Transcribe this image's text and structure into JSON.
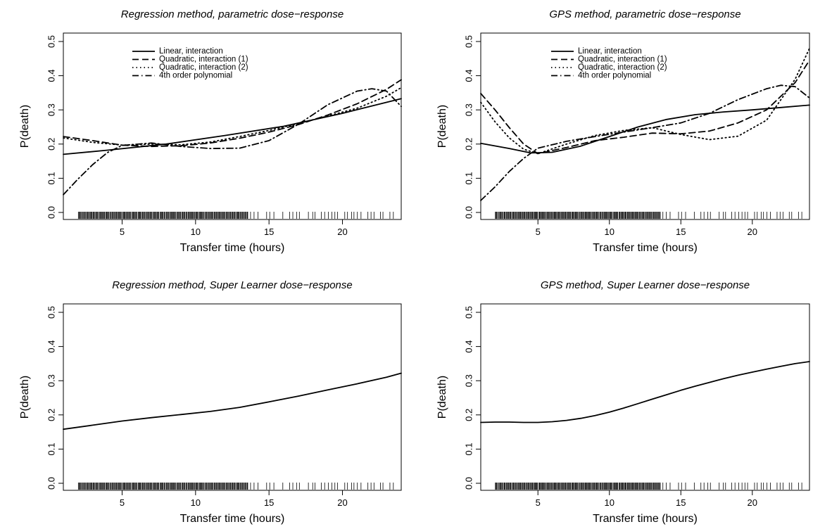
{
  "chart_data": [
    {
      "type": "line",
      "title": "Regression method, parametric dose−response",
      "xlabel": "Transfer time (hours)",
      "ylabel": "P(death)",
      "xlim": [
        1,
        24
      ],
      "ylim": [
        0.0,
        0.5
      ],
      "xticks": [
        "5",
        "10",
        "15",
        "20"
      ],
      "yticks": [
        "0.0",
        "0.1",
        "0.2",
        "0.3",
        "0.4",
        "0.5"
      ],
      "legend_position": "top-left",
      "series": [
        {
          "name": "Linear, interaction",
          "style": "solid",
          "x": [
            1,
            4,
            8,
            12,
            16,
            20,
            24
          ],
          "y": [
            0.17,
            0.182,
            0.2,
            0.225,
            0.252,
            0.29,
            0.333
          ]
        },
        {
          "name": "Quadratic, interaction (1)",
          "style": "dashed",
          "x": [
            1,
            3,
            5,
            7,
            9,
            11,
            13,
            15,
            17,
            19,
            21,
            23,
            24
          ],
          "y": [
            0.222,
            0.21,
            0.197,
            0.193,
            0.195,
            0.203,
            0.217,
            0.235,
            0.257,
            0.285,
            0.318,
            0.36,
            0.388
          ]
        },
        {
          "name": "Quadratic, interaction (2)",
          "style": "dotted",
          "x": [
            1,
            3,
            5,
            7,
            9,
            11,
            13,
            15,
            17,
            19,
            21,
            23,
            24
          ],
          "y": [
            0.218,
            0.205,
            0.197,
            0.2,
            0.198,
            0.206,
            0.222,
            0.24,
            0.26,
            0.282,
            0.305,
            0.34,
            0.365
          ]
        },
        {
          "name": "4th order polynomial",
          "style": "dotdash",
          "x": [
            1,
            2,
            3,
            4,
            5,
            7,
            9,
            11,
            13,
            15,
            17,
            19,
            21,
            22,
            23,
            24
          ],
          "y": [
            0.052,
            0.098,
            0.14,
            0.175,
            0.196,
            0.203,
            0.193,
            0.187,
            0.188,
            0.21,
            0.258,
            0.315,
            0.355,
            0.362,
            0.355,
            0.31
          ]
        }
      ]
    },
    {
      "type": "line",
      "title": "GPS method, parametric dose−response",
      "xlabel": "Transfer time (hours)",
      "ylabel": "P(death)",
      "xlim": [
        1,
        24
      ],
      "ylim": [
        0.0,
        0.5
      ],
      "xticks": [
        "5",
        "10",
        "15",
        "20"
      ],
      "yticks": [
        "0.0",
        "0.1",
        "0.2",
        "0.3",
        "0.4",
        "0.5"
      ],
      "legend_position": "top-center",
      "series": [
        {
          "name": "Linear, interaction",
          "style": "solid",
          "x": [
            1,
            3,
            4.5,
            6,
            8,
            10,
            12,
            14,
            16,
            18,
            20,
            22,
            24
          ],
          "y": [
            0.202,
            0.187,
            0.174,
            0.176,
            0.194,
            0.222,
            0.25,
            0.272,
            0.286,
            0.294,
            0.3,
            0.307,
            0.314
          ]
        },
        {
          "name": "Quadratic, interaction (1)",
          "style": "dashed",
          "x": [
            1,
            2,
            3,
            4,
            5,
            7,
            9,
            11,
            13,
            15,
            17,
            19,
            21,
            23,
            24
          ],
          "y": [
            0.348,
            0.3,
            0.248,
            0.2,
            0.172,
            0.19,
            0.21,
            0.22,
            0.232,
            0.23,
            0.238,
            0.262,
            0.3,
            0.38,
            0.445
          ]
        },
        {
          "name": "Quadratic, interaction (2)",
          "style": "dotted",
          "x": [
            1,
            2,
            3,
            4,
            5,
            7,
            9,
            11,
            13,
            15,
            17,
            19,
            21,
            23,
            24
          ],
          "y": [
            0.322,
            0.265,
            0.218,
            0.185,
            0.172,
            0.2,
            0.225,
            0.24,
            0.248,
            0.228,
            0.213,
            0.223,
            0.27,
            0.39,
            0.48
          ]
        },
        {
          "name": "4th order polynomial",
          "style": "dotdash",
          "x": [
            1,
            2,
            3,
            4,
            5,
            7,
            9,
            11,
            13,
            15,
            17,
            19,
            21,
            22,
            23,
            24
          ],
          "y": [
            0.035,
            0.075,
            0.12,
            0.158,
            0.188,
            0.208,
            0.222,
            0.235,
            0.248,
            0.262,
            0.29,
            0.33,
            0.362,
            0.372,
            0.368,
            0.335
          ]
        }
      ]
    },
    {
      "type": "line",
      "title": "Regression method, Super Learner dose−response",
      "xlabel": "Transfer time (hours)",
      "ylabel": "P(death)",
      "xlim": [
        1,
        24
      ],
      "ylim": [
        0.0,
        0.5
      ],
      "xticks": [
        "5",
        "10",
        "15",
        "20"
      ],
      "yticks": [
        "0.0",
        "0.1",
        "0.2",
        "0.3",
        "0.4",
        "0.5"
      ],
      "series": [
        {
          "style": "solid",
          "x": [
            1,
            3,
            5,
            7,
            9,
            11,
            13,
            15,
            17,
            19,
            21,
            23,
            24
          ],
          "y": [
            0.158,
            0.17,
            0.182,
            0.192,
            0.201,
            0.21,
            0.222,
            0.238,
            0.255,
            0.273,
            0.291,
            0.31,
            0.322
          ]
        }
      ]
    },
    {
      "type": "line",
      "title": "GPS method, Super Learner dose−response",
      "xlabel": "Transfer time (hours)",
      "ylabel": "P(death)",
      "xlim": [
        1,
        24
      ],
      "ylim": [
        0.0,
        0.5
      ],
      "xticks": [
        "5",
        "10",
        "15",
        "20"
      ],
      "yticks": [
        "0.0",
        "0.1",
        "0.2",
        "0.3",
        "0.4",
        "0.5"
      ],
      "series": [
        {
          "style": "solid",
          "x": [
            1,
            2,
            3,
            4,
            5,
            6,
            7,
            8,
            9,
            10,
            11,
            12,
            13,
            14,
            15,
            16,
            17,
            18,
            19,
            20,
            21,
            22,
            23,
            24
          ],
          "y": [
            0.178,
            0.179,
            0.179,
            0.178,
            0.178,
            0.18,
            0.184,
            0.19,
            0.198,
            0.208,
            0.22,
            0.233,
            0.246,
            0.259,
            0.272,
            0.284,
            0.295,
            0.306,
            0.316,
            0.325,
            0.334,
            0.342,
            0.35,
            0.356
          ]
        }
      ]
    }
  ]
}
